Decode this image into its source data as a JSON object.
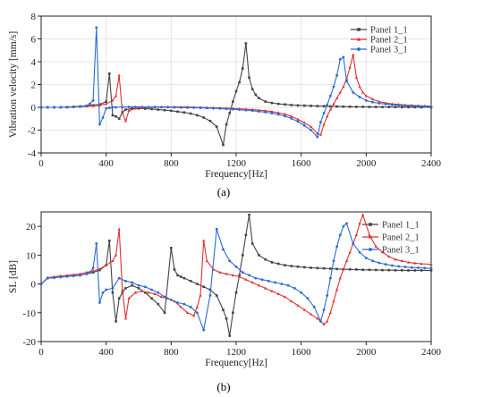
{
  "chart_data": [
    {
      "type": "line",
      "caption": "(a)",
      "xlabel": "Frequency[Hz]",
      "ylabel": "Vibration velocity [mm/s]",
      "xlim": [
        0,
        2400
      ],
      "ylim": [
        -4,
        8
      ],
      "xticks": [
        0,
        400,
        800,
        1200,
        1600,
        2000,
        2400
      ],
      "yticks": [
        -4,
        -2,
        0,
        2,
        4,
        6,
        8
      ],
      "grid": true,
      "legend_position": "top-right",
      "series": [
        {
          "name": "Panel 1_1",
          "color": "#444444",
          "marker": "square",
          "x": [
            0,
            40,
            80,
            120,
            160,
            200,
            240,
            280,
            320,
            360,
            400,
            420,
            440,
            460,
            480,
            500,
            520,
            560,
            600,
            640,
            680,
            720,
            760,
            800,
            840,
            880,
            920,
            960,
            1000,
            1040,
            1080,
            1120,
            1140,
            1160,
            1180,
            1200,
            1220,
            1240,
            1260,
            1280,
            1300,
            1320,
            1340,
            1380,
            1420,
            1460,
            1500,
            1540,
            1580,
            1620,
            1660,
            1700,
            1740,
            1780,
            1820,
            1860,
            1900,
            1940,
            1980,
            2020,
            2060,
            2100,
            2140,
            2180,
            2220,
            2260,
            2300,
            2340,
            2400
          ],
          "y": [
            0,
            0,
            0,
            0,
            0.02,
            0.05,
            0.08,
            0.12,
            0.18,
            0.25,
            0.5,
            2.95,
            -0.7,
            -0.8,
            -1.0,
            -0.45,
            -0.2,
            -0.1,
            -0.1,
            -0.12,
            -0.15,
            -0.2,
            -0.25,
            -0.3,
            -0.38,
            -0.45,
            -0.55,
            -0.7,
            -0.9,
            -1.2,
            -1.7,
            -3.3,
            -1.5,
            -0.5,
            0.5,
            1.4,
            2.2,
            3.4,
            5.6,
            2.6,
            1.6,
            1.1,
            0.8,
            0.5,
            0.38,
            0.3,
            0.25,
            0.2,
            0.17,
            0.15,
            0.13,
            0.11,
            0.1,
            0.08,
            0.07,
            0.06,
            0.05,
            0.04,
            0.04,
            0.03,
            0.03,
            0.02,
            0.02,
            0.02,
            0.01,
            0.01,
            0.01,
            0.0,
            0.0
          ]
        },
        {
          "name": "Panel 2_1",
          "color": "#e03030",
          "marker": "triangle",
          "x": [
            0,
            40,
            80,
            120,
            160,
            200,
            240,
            280,
            320,
            360,
            400,
            440,
            460,
            480,
            500,
            520,
            540,
            580,
            620,
            660,
            700,
            740,
            780,
            820,
            860,
            900,
            940,
            980,
            1020,
            1060,
            1100,
            1140,
            1180,
            1220,
            1260,
            1300,
            1340,
            1380,
            1420,
            1460,
            1500,
            1540,
            1580,
            1620,
            1660,
            1700,
            1720,
            1740,
            1760,
            1780,
            1800,
            1820,
            1840,
            1860,
            1880,
            1900,
            1920,
            1940,
            1960,
            1980,
            2000,
            2040,
            2080,
            2120,
            2160,
            2200,
            2240,
            2280,
            2320,
            2360,
            2400
          ],
          "y": [
            0,
            0,
            0,
            0,
            0,
            0.02,
            0.05,
            0.08,
            0.12,
            0.18,
            0.3,
            0.6,
            1.0,
            2.8,
            -0.5,
            -1.2,
            -0.3,
            -0.1,
            -0.03,
            0.0,
            0.02,
            0.03,
            0.03,
            0.03,
            0.02,
            0.02,
            0.01,
            0.0,
            -0.02,
            -0.04,
            -0.06,
            -0.08,
            -0.1,
            -0.13,
            -0.16,
            -0.2,
            -0.25,
            -0.3,
            -0.38,
            -0.48,
            -0.6,
            -0.8,
            -1.05,
            -1.35,
            -1.7,
            -2.3,
            -2.4,
            -1.5,
            -0.8,
            -0.2,
            0.3,
            0.8,
            1.3,
            1.8,
            2.5,
            3.5,
            4.6,
            2.6,
            1.8,
            1.3,
            1.0,
            0.7,
            0.5,
            0.38,
            0.3,
            0.25,
            0.2,
            0.17,
            0.14,
            0.12,
            0.1
          ]
        },
        {
          "name": "Panel 3_1",
          "color": "#2a6ad8",
          "marker": "circle",
          "x": [
            0,
            40,
            80,
            120,
            160,
            200,
            240,
            280,
            300,
            320,
            340,
            360,
            380,
            400,
            420,
            440,
            460,
            500,
            540,
            580,
            620,
            660,
            700,
            740,
            780,
            820,
            860,
            900,
            940,
            980,
            1020,
            1060,
            1100,
            1140,
            1180,
            1220,
            1260,
            1300,
            1340,
            1380,
            1420,
            1460,
            1500,
            1540,
            1580,
            1620,
            1660,
            1700,
            1720,
            1740,
            1760,
            1780,
            1800,
            1820,
            1840,
            1860,
            1880,
            1920,
            1960,
            2000,
            2040,
            2080,
            2120,
            2160,
            2200,
            2240,
            2280,
            2320,
            2360,
            2400
          ],
          "y": [
            0,
            0,
            0,
            0,
            0.02,
            0.04,
            0.08,
            0.15,
            0.3,
            0.6,
            7.0,
            -1.5,
            -0.9,
            -0.1,
            -0.05,
            0.0,
            0.0,
            0.02,
            0.03,
            0.03,
            0.03,
            0.02,
            0.02,
            0.01,
            0.0,
            -0.01,
            -0.02,
            -0.03,
            -0.04,
            -0.05,
            -0.07,
            -0.09,
            -0.11,
            -0.14,
            -0.17,
            -0.21,
            -0.25,
            -0.3,
            -0.36,
            -0.43,
            -0.52,
            -0.63,
            -0.78,
            -0.98,
            -1.25,
            -1.6,
            -2.0,
            -2.6,
            -1.3,
            -0.5,
            0.2,
            1.0,
            1.8,
            2.8,
            4.2,
            4.4,
            2.3,
            1.3,
            0.9,
            0.6,
            0.45,
            0.35,
            0.28,
            0.22,
            0.18,
            0.15,
            0.12,
            0.1,
            0.08,
            0.07
          ]
        }
      ]
    },
    {
      "type": "line",
      "caption": "(b)",
      "xlabel": "Frequency[Hz]",
      "ylabel": "SL [dB]",
      "xlim": [
        0,
        2400
      ],
      "ylim": [
        -20,
        25
      ],
      "xticks": [
        0,
        400,
        800,
        1200,
        1600,
        2000,
        2400
      ],
      "yticks": [
        -20,
        -10,
        0,
        10,
        20
      ],
      "grid": false,
      "legend_position": "top-right",
      "series": [
        {
          "name": "Panel 1_1",
          "color": "#444444",
          "marker": "square",
          "x": [
            0,
            40,
            80,
            120,
            160,
            200,
            240,
            280,
            320,
            360,
            400,
            420,
            440,
            460,
            480,
            500,
            520,
            560,
            600,
            640,
            680,
            720,
            760,
            800,
            820,
            840,
            860,
            880,
            920,
            960,
            1000,
            1040,
            1080,
            1120,
            1140,
            1160,
            1180,
            1200,
            1220,
            1240,
            1260,
            1280,
            1300,
            1340,
            1380,
            1420,
            1460,
            1500,
            1540,
            1580,
            1620,
            1660,
            1700,
            1740,
            1780,
            1820,
            1860,
            1900,
            1940,
            1980,
            2020,
            2060,
            2100,
            2140,
            2180,
            2220,
            2260,
            2300,
            2340,
            2400
          ],
          "y": [
            0,
            2,
            2.2,
            2.4,
            2.6,
            2.8,
            3.0,
            3.5,
            4.0,
            4.8,
            6.5,
            15,
            -3,
            -13,
            -5,
            -3,
            -1.5,
            -0.5,
            -1.5,
            -3,
            -5,
            -7,
            -10,
            12.5,
            5,
            3,
            2.5,
            2,
            1,
            0,
            -1,
            -2,
            -4,
            -9,
            -12,
            -18,
            -10,
            -3,
            3,
            10,
            17,
            24,
            14,
            10,
            8.5,
            7.5,
            7,
            6.5,
            6.2,
            6,
            5.8,
            5.6,
            5.5,
            5.4,
            5.3,
            5.2,
            5.1,
            5.05,
            5.0,
            4.9,
            4.9,
            4.85,
            4.8,
            4.8,
            4.75,
            4.75,
            4.7,
            4.7,
            4.7,
            4.7
          ]
        },
        {
          "name": "Panel 2_1",
          "color": "#e03030",
          "marker": "triangle",
          "x": [
            0,
            40,
            80,
            120,
            160,
            200,
            240,
            280,
            320,
            360,
            400,
            440,
            460,
            480,
            500,
            520,
            540,
            580,
            620,
            660,
            700,
            740,
            780,
            820,
            860,
            900,
            940,
            960,
            980,
            1000,
            1020,
            1060,
            1100,
            1140,
            1180,
            1220,
            1260,
            1300,
            1340,
            1380,
            1420,
            1460,
            1500,
            1540,
            1580,
            1620,
            1660,
            1700,
            1740,
            1760,
            1780,
            1800,
            1820,
            1840,
            1860,
            1880,
            1900,
            1920,
            1940,
            1960,
            1980,
            2020,
            2060,
            2100,
            2140,
            2180,
            2220,
            2260,
            2300,
            2340,
            2400
          ],
          "y": [
            0,
            2.2,
            2.5,
            2.8,
            3.0,
            3.2,
            3.5,
            4.0,
            4.5,
            5.2,
            6.5,
            8,
            10,
            19,
            -2,
            -12,
            -5,
            -3,
            -2.5,
            -3,
            -3.5,
            -4.5,
            -5,
            -6,
            -8,
            -10,
            -11,
            -8,
            -4,
            15,
            8,
            5,
            4,
            3.5,
            3,
            2.5,
            1.5,
            0.5,
            -0.5,
            -1.5,
            -2.5,
            -3.5,
            -4.5,
            -6,
            -7.5,
            -9,
            -10.5,
            -12,
            -14,
            -13,
            -10,
            -6,
            -2,
            2,
            5,
            8,
            11,
            14,
            17,
            21,
            24,
            17,
            13,
            11,
            9.5,
            8.5,
            8,
            7.5,
            7.2,
            7,
            6.8
          ]
        },
        {
          "name": "Panel 3_1",
          "color": "#2a6ad8",
          "marker": "circle",
          "x": [
            0,
            40,
            80,
            120,
            160,
            200,
            240,
            280,
            300,
            320,
            340,
            360,
            380,
            400,
            440,
            480,
            520,
            560,
            600,
            640,
            680,
            720,
            760,
            800,
            840,
            880,
            920,
            960,
            1000,
            1040,
            1080,
            1120,
            1160,
            1200,
            1240,
            1280,
            1320,
            1360,
            1400,
            1440,
            1480,
            1520,
            1560,
            1600,
            1640,
            1680,
            1720,
            1740,
            1760,
            1780,
            1800,
            1820,
            1840,
            1860,
            1880,
            1920,
            1960,
            2000,
            2040,
            2080,
            2120,
            2160,
            2200,
            2240,
            2280,
            2320,
            2360,
            2400
          ],
          "y": [
            0,
            2.0,
            2.2,
            2.4,
            2.6,
            2.8,
            3.0,
            3.5,
            4.0,
            5.5,
            14,
            -6.5,
            -3,
            -2,
            -1.5,
            2,
            1,
            0.5,
            -0.5,
            -1,
            -2,
            -3,
            -4.5,
            -5.5,
            -6.5,
            -7,
            -8,
            -10,
            -16,
            -4,
            19,
            12,
            8,
            6,
            4,
            3,
            2,
            1.5,
            1,
            0.5,
            0,
            -0.5,
            -1.5,
            -3,
            -5,
            -8,
            -13,
            -9,
            -4,
            2,
            8,
            13,
            17,
            20,
            21,
            14,
            11,
            9,
            8,
            7.3,
            6.8,
            6.4,
            6.1,
            5.9,
            5.7,
            5.6,
            5.5,
            5.4
          ]
        }
      ]
    }
  ]
}
